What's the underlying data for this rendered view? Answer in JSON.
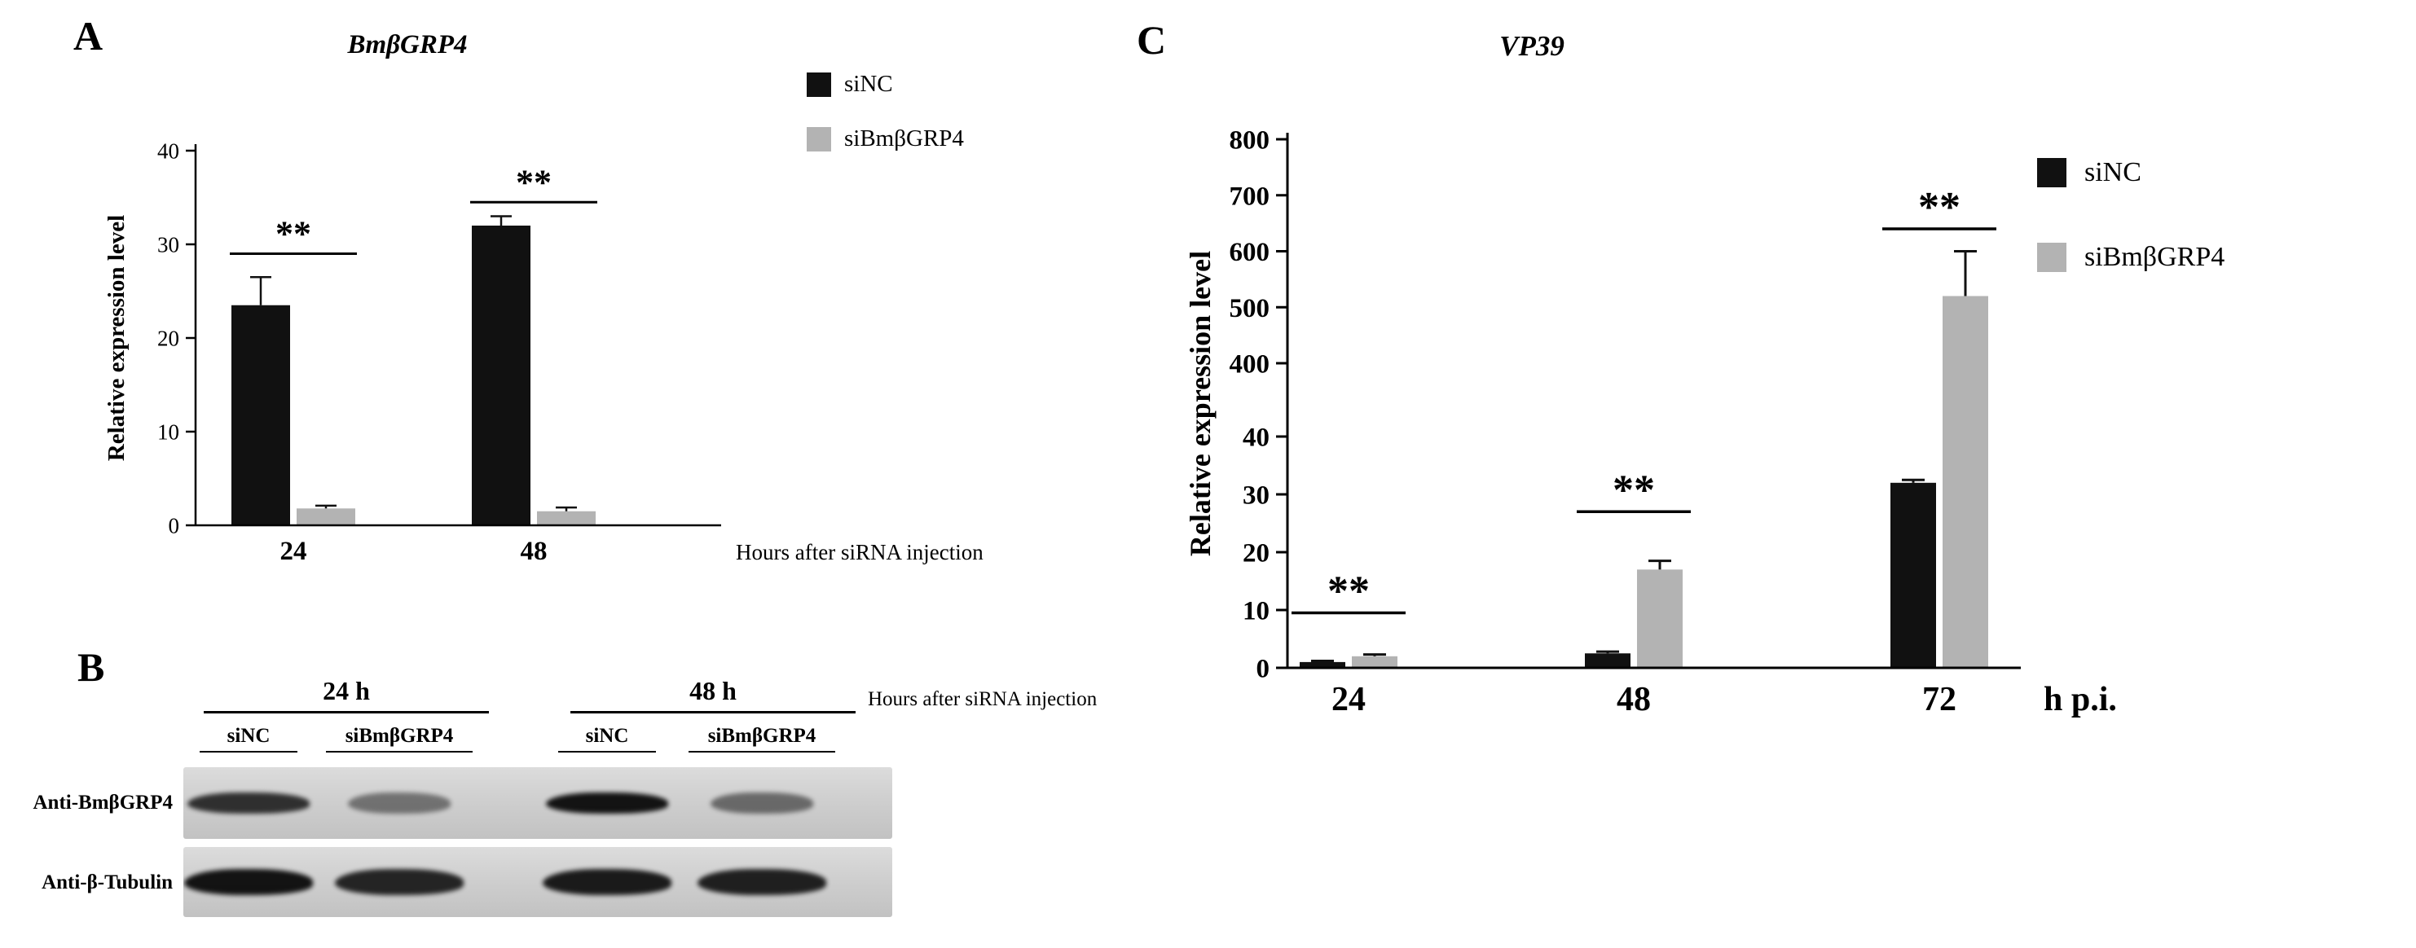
{
  "panels": {
    "a": {
      "label": "A"
    },
    "b": {
      "label": "B"
    },
    "c": {
      "label": "C"
    }
  },
  "chart_data": [
    {
      "id": "A",
      "type": "bar",
      "title": "BmβGRP4",
      "categories": [
        "24",
        "48"
      ],
      "series": [
        {
          "name": "siNC",
          "color": "#111111",
          "values": [
            23.5,
            32
          ],
          "errors": [
            3,
            1
          ]
        },
        {
          "name": "siBmβGRP4",
          "color": "#b3b3b3",
          "values": [
            1.8,
            1.5
          ],
          "errors": [
            0.3,
            0.4
          ]
        }
      ],
      "ylabel": "Relative expression level",
      "xlabel": "Hours after siRNA injection",
      "ylim": [
        0,
        40
      ],
      "yticks": [
        0,
        10,
        20,
        30,
        40
      ],
      "significance": [
        {
          "group": 0,
          "label": "**",
          "y": 29
        },
        {
          "group": 1,
          "label": "**",
          "y": 34.5
        }
      ],
      "legend_position": "top-right",
      "grid": false
    },
    {
      "id": "C",
      "type": "bar",
      "title": "VP39",
      "categories": [
        "24",
        "48",
        "72"
      ],
      "series": [
        {
          "name": "siNC",
          "color": "#111111",
          "values": [
            1,
            2.5,
            32
          ],
          "errors": [
            0.2,
            0.3,
            0.5
          ]
        },
        {
          "name": "siBmβGRP4",
          "color": "#b3b3b3",
          "values": [
            2,
            17,
            520
          ],
          "errors": [
            0.3,
            1.5,
            80
          ]
        }
      ],
      "ylabel": "Relative expression level",
      "xlabel": "h p.i.",
      "axis_break": {
        "lower": [
          0,
          40
        ],
        "upper": [
          400,
          800
        ],
        "lower_ticks": [
          0,
          10,
          20,
          30,
          40
        ],
        "upper_ticks": [
          400,
          500,
          600,
          700,
          800
        ]
      },
      "significance": [
        {
          "group": 0,
          "label": "**",
          "y": 9.5
        },
        {
          "group": 1,
          "label": "**",
          "y": 27
        },
        {
          "group": 2,
          "label": "**",
          "y": 640
        }
      ],
      "legend_position": "right",
      "grid": false
    }
  ],
  "panel_b": {
    "group_headers": [
      "24 h",
      "48 h"
    ],
    "note": "Hours after siRNA injection",
    "lanes": [
      "siNC",
      "siBmβGRP4",
      "siNC",
      "siBmβGRP4"
    ],
    "rows": [
      {
        "label": "Anti-BmβGRP4",
        "band_intensity": [
          0.82,
          0.48,
          0.97,
          0.52
        ]
      },
      {
        "label": "Anti-β-Tubulin",
        "band_intensity": [
          0.97,
          0.88,
          0.93,
          0.9
        ]
      }
    ]
  },
  "colors": {
    "series_dark": "#111111",
    "series_gray": "#b3b3b3",
    "blot_background": "#d2d2d2"
  }
}
